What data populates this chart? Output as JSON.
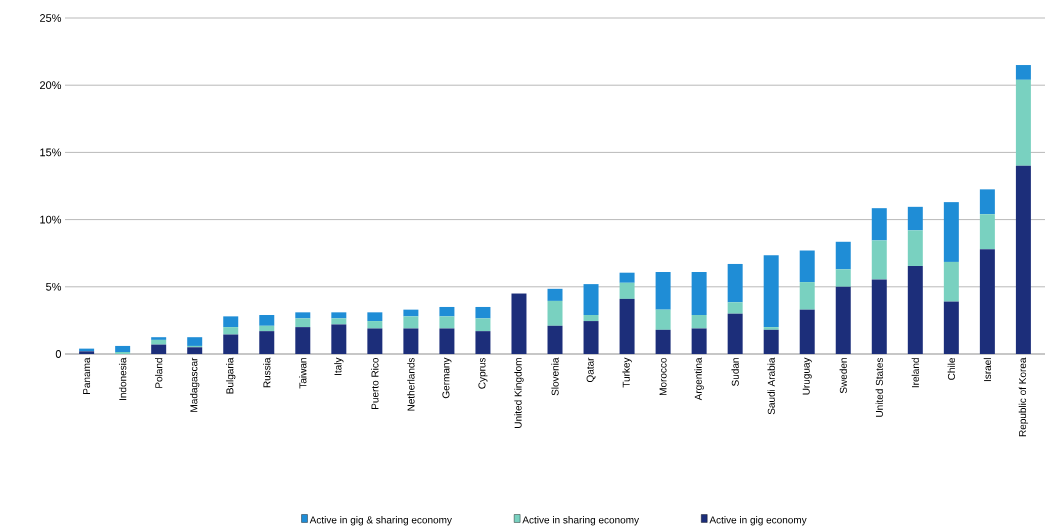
{
  "chart_data": {
    "type": "bar",
    "stacked": true,
    "categories": [
      "Panama",
      "Indonesia",
      "Poland",
      "Madagascar",
      "Bulgaria",
      "Russia",
      "Taiwan",
      "Italy",
      "Puerto Rico",
      "Netherlands",
      "Germany",
      "Cyprus",
      "United Kingdom",
      "Slovenia",
      "Qatar",
      "Turkey",
      "Morocco",
      "Argentina",
      "Sudan",
      "Saudi Arabia",
      "Uruguay",
      "Sweden",
      "United States",
      "Ireland",
      "Chile",
      "Israel",
      "Republic of Korea"
    ],
    "series": [
      {
        "name": "Active in gig economy",
        "color": "#1c2e7a",
        "values": [
          0.2,
          0,
          0.7,
          0.5,
          1.45,
          1.7,
          2.0,
          2.2,
          1.9,
          1.9,
          1.9,
          1.7,
          4.5,
          2.1,
          2.45,
          4.1,
          1.8,
          1.9,
          3.0,
          1.8,
          3.3,
          5.0,
          5.55,
          6.55,
          3.9,
          7.8,
          14.0
        ]
      },
      {
        "name": "Active in sharing economy",
        "color": "#79d1c0",
        "values": [
          0,
          0.15,
          0.35,
          0.1,
          0.55,
          0.4,
          0.65,
          0.45,
          0.55,
          0.9,
          0.9,
          0.95,
          0,
          1.85,
          0.45,
          1.2,
          1.5,
          1.0,
          0.85,
          0.2,
          2.05,
          1.3,
          2.9,
          2.65,
          2.95,
          2.6,
          6.4
        ]
      },
      {
        "name": "Active in gig & sharing economy",
        "color": "#1f8dd6",
        "values": [
          0.2,
          0.45,
          0.2,
          0.65,
          0.8,
          0.8,
          0.45,
          0.45,
          0.65,
          0.5,
          0.7,
          0.85,
          0,
          0.9,
          2.3,
          0.75,
          2.8,
          3.2,
          2.85,
          5.35,
          2.35,
          2.05,
          2.4,
          1.75,
          4.45,
          1.85,
          1.1
        ]
      }
    ],
    "ylim": [
      0,
      25
    ],
    "yticks": [
      {
        "value": 0,
        "label": "0"
      },
      {
        "value": 5,
        "label": "5%"
      },
      {
        "value": 10,
        "label": "10%"
      },
      {
        "value": 15,
        "label": "15%"
      },
      {
        "value": 20,
        "label": "20%"
      },
      {
        "value": 25,
        "label": "25%"
      }
    ],
    "grid": "y",
    "legend": "bottom"
  }
}
